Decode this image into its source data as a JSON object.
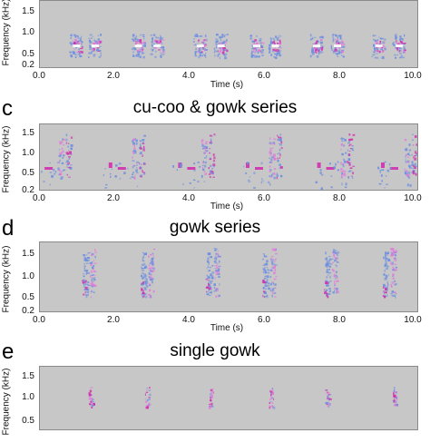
{
  "panels": [
    {
      "id": "b",
      "letter": "",
      "title": "",
      "ylabel": "Frequency (kHz)",
      "xlabel": "Time (s)",
      "yticks": [
        "1.5",
        "1.0",
        "0.5",
        "0.2"
      ],
      "xticks": [
        "0.0",
        "2.0",
        "4.0",
        "6.0",
        "8.0",
        "10.0"
      ]
    },
    {
      "id": "c",
      "letter": "c",
      "title": "cu-coo & gowk series",
      "ylabel": "Frequency (kHz)",
      "xlabel": "Time (s)",
      "yticks": [
        "1.5",
        "1.0",
        "0.5",
        "0.2"
      ],
      "xticks": [
        "0.0",
        "2.0",
        "4.0",
        "6.0",
        "8.0",
        "10.0"
      ]
    },
    {
      "id": "d",
      "letter": "d",
      "title": "gowk series",
      "ylabel": "Frequency (kHz)",
      "xlabel": "Time (s)",
      "yticks": [
        "1.5",
        "1.0",
        "0.5",
        "0.2"
      ],
      "xticks": [
        "0.0",
        "2.0",
        "4.0",
        "6.0",
        "8.0",
        "10.0"
      ]
    },
    {
      "id": "e",
      "letter": "e",
      "title": "single gowk",
      "ylabel": "Frequency (kHz)",
      "xlabel": "",
      "yticks": [
        "1.5",
        "1.0",
        "0.5"
      ],
      "xticks": []
    }
  ],
  "spectrogram_events": {
    "b_calls_s": [
      0.9,
      1.4,
      2.55,
      3.05,
      4.2,
      4.75,
      5.7,
      6.2,
      7.3,
      7.85,
      8.95,
      9.5
    ],
    "c_bouts_s": [
      0.8,
      2.75,
      4.6,
      6.4,
      8.3,
      10.0
    ],
    "d_bouts_s": [
      1.25,
      2.8,
      4.55,
      6.05,
      7.7,
      9.25
    ],
    "e_gowks_s": [
      1.3,
      2.8,
      4.5,
      6.1,
      7.6,
      9.4
    ]
  },
  "colors": {
    "plot_background": "#c7c7c7",
    "spectral_blue": "#6f8fe0",
    "spectral_magenta": "#d22fae",
    "spectral_pink": "#e27adb"
  }
}
